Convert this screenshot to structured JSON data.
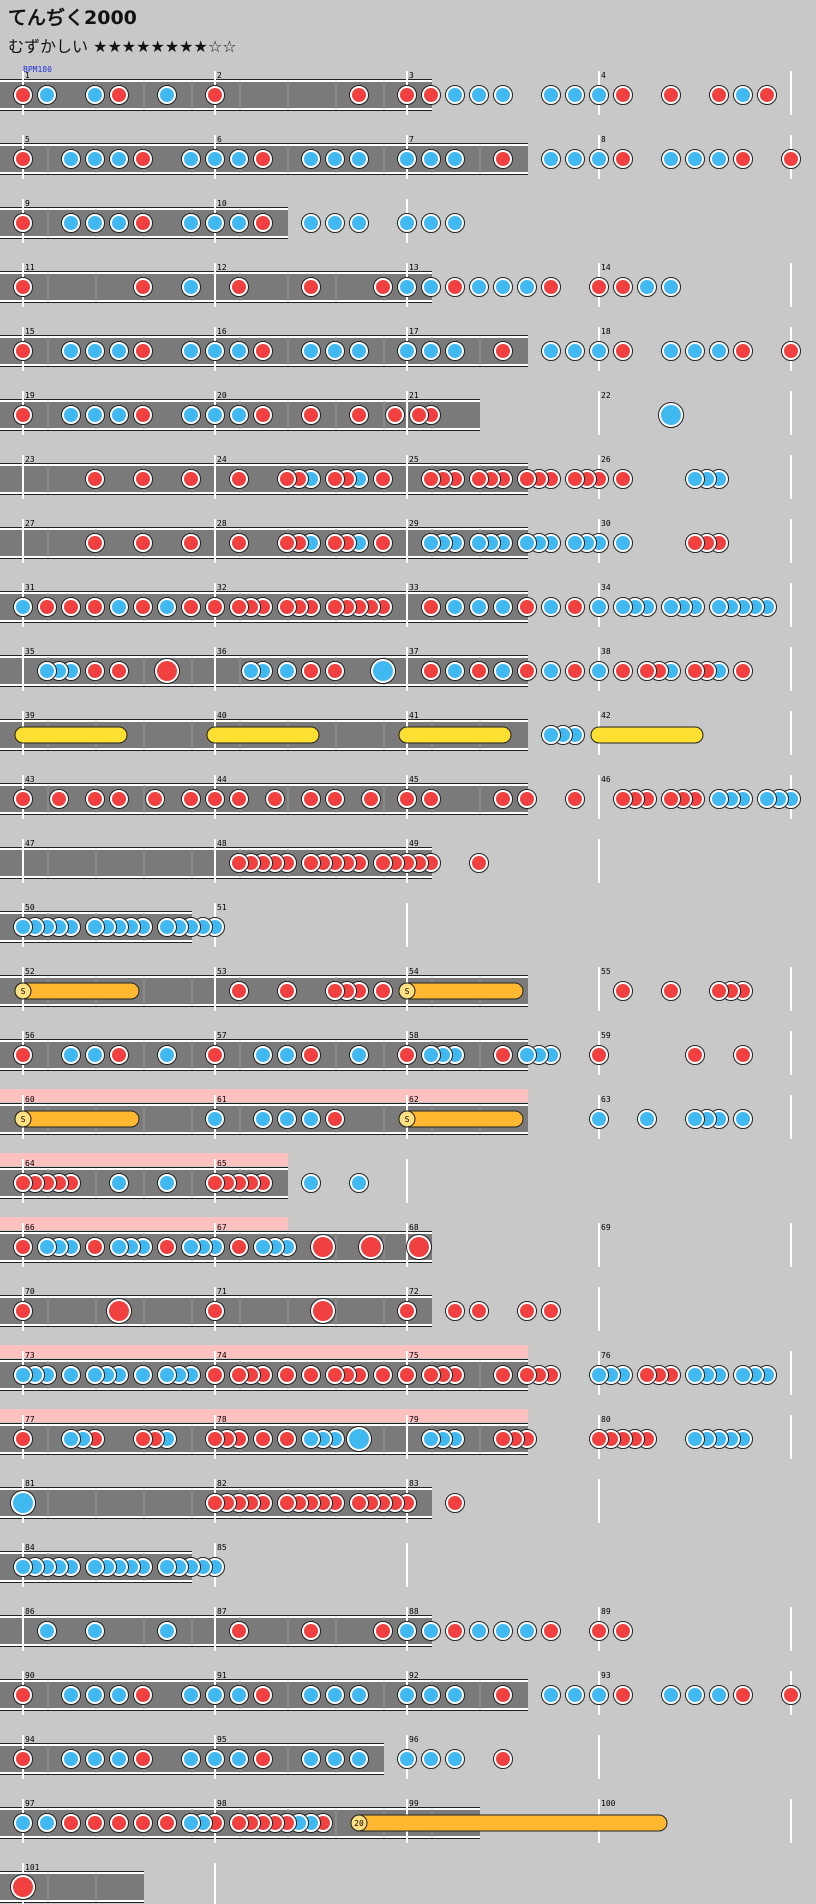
{
  "header": {
    "title": "てんぢく2000",
    "difficulty_label": "むずかしい",
    "stars": "★★★★★★★★☆☆"
  },
  "bpm_label": "BPM180",
  "colors": {
    "don": "#f04040",
    "ka": "#40b8f0",
    "roll": "#ffe030",
    "balloon": "#ffb830",
    "gogo": "#ffc0c0",
    "lane": "#7a7a7a",
    "background": "#c8c8c8"
  },
  "chart_data": {
    "type": "taiko-score",
    "note_legend": {
      "d": "don",
      "k": "ka",
      "D": "big don",
      "K": "big ka",
      "yellow roll": "drum roll",
      "orange roll": "balloon"
    },
    "rows": [
      {
        "cells": 9,
        "w": 16,
        "bars": [
          1,
          2,
          3,
          4
        ],
        "notes": "d0k1k3d4k6d8d14d16d17k18k19k20k22k23k24d25d27d29k30d31"
      },
      {
        "cells": 11,
        "w": 16,
        "bars": [
          5,
          6,
          7,
          8
        ],
        "notes": "d0k2k3k4d5k7k8k9d10k12k13k14k16k17k18d20k22k23k24d25k27k28k29d30d32k35k36k37k39k40k41"
      },
      {
        "cells": 6,
        "w": 16,
        "bars": [
          9,
          10
        ],
        "notes": "d0k2k3k4d5k7k8k9d10k12k13k14k16k17k18"
      },
      {
        "cells": 9,
        "w": 16,
        "bars": [
          11,
          12,
          13,
          14
        ],
        "notes": "d0d5k7d9d12d15k16k17d18k19k20k21d22d24d25k26k27"
      },
      {
        "cells": 11,
        "w": 16,
        "bars": [
          15,
          16,
          17,
          18
        ],
        "notes": "d0k2k3k4d5k7k8k9d10k12k13k14k16k17k18d20k22k23k24d25k27k28k29d30d32k35k36k37k39k40k41"
      },
      {
        "cells": 10,
        "w": 16,
        "bars": [
          19,
          20,
          21,
          22
        ],
        "notes": "d0k2k3k4d5k7k8k9d10d12d14d15.5d16.5d17K27"
      },
      {
        "cells": 11,
        "w": 16,
        "bars": [
          23,
          24,
          25,
          26
        ],
        "notes": "d3d5d7d9d11d11.5k12d13d13.5k14d15d17d17.5d18d19d19.5d20d21d21.5d22d23d23.5d24d25k28k28.5k29"
      },
      {
        "cells": 11,
        "w": 16,
        "bars": [
          27,
          28,
          29,
          30
        ],
        "notes": "d3d5d7d9d11d11.5k12d13d13.5k14d15k17k17.5k18k19k19.5k20k21k21.5k22k23k23.5k24k25d28d28.5d29"
      },
      {
        "cells": 11,
        "w": 16,
        "bars": [
          31,
          32,
          33,
          34
        ],
        "notes": "k0d1d2d3k4d5k6d7d8d9d9.5d10d11d11.5d12d13d13.5d14d14.5d15d17k18k19k20d21k22d23k24k25k25.5k26k27k27.5k28k29k29.5k30k30.5k31"
      },
      {
        "cells": 11,
        "w": 16,
        "bars": [
          35,
          36,
          37,
          38
        ],
        "notes": "k1k1.5k2d3d4D6k9.5k10k11d12d13K15d17k18d19k20d21k22d23k24d25d26d26.5k27d28d28.5k29d30"
      },
      {
        "cells": 11,
        "w": 16,
        "bars": [
          39,
          40,
          41,
          42
        ],
        "notes": "k22k22.5k23",
        "rolls": [
          [
            0,
            4,
            "r"
          ],
          [
            8,
            12,
            "r"
          ],
          [
            16,
            20,
            "r"
          ],
          [
            24,
            28,
            "r"
          ]
        ]
      },
      {
        "cells": 11,
        "w": 16,
        "bars": [
          43,
          44,
          45,
          46
        ],
        "notes": "d0d1.5d3d4d5.5d7d8d9d10.5d12d13d14.5d16d17d20d21d23d25d25.5d26d27d27.5d28k29k29.5k30k31k31.5k32"
      },
      {
        "cells": 9,
        "w": 16,
        "bars": [
          47,
          48,
          49
        ],
        "notes": "d9d9.5d10d10.5d11d12d12.5d13d13.5d14d15d15.5d16d16.5d17d19"
      },
      {
        "cells": 4,
        "w": 16,
        "bars": [
          50,
          51
        ],
        "notes": "k0k0.5k1k1.5k2k3k3.5k4k4.5k5k6k6.5k7k7.5k8"
      },
      {
        "cells": 11,
        "w": 16,
        "bars": [
          52,
          53,
          54,
          55
        ],
        "notes": "d9d11d13d13.5d14d15d25d27d29d29.5d30",
        "rolls": [
          [
            0,
            4.5,
            "b"
          ],
          [
            16,
            20.5,
            "b"
          ]
        ]
      },
      {
        "cells": 11,
        "w": 16,
        "bars": [
          56,
          57,
          58,
          59
        ],
        "notes": "d0k2k3d4k6d8k10k11d12k14d16k17k17.5k18d20k21k21.5k22d24d28d30"
      },
      {
        "cells": 11,
        "w": 16,
        "bars": [
          60,
          61,
          62,
          63
        ],
        "notes": "k8k10k11k12d13k24k26k28k28.5k29k30",
        "rolls": [
          [
            0,
            4.5,
            "b"
          ],
          [
            16,
            20.5,
            "b"
          ]
        ],
        "gogo": [
          0,
          11
        ]
      },
      {
        "cells": 6,
        "w": 16,
        "bars": [
          64,
          65
        ],
        "notes": "d0d0.5d1d1.5d2k4k6d8d8.5d9d9.5d10k12k14",
        "gogo": [
          0,
          6
        ]
      },
      {
        "cells": 9,
        "w": 16,
        "bars": [
          66,
          67,
          68,
          69
        ],
        "notes": "d0k1k1.5k2d3k4k4.5k5d6k7k7.5k8d9k10k10.5k11D12.5D14.5D16.5",
        "gogo": [
          0,
          6
        ]
      },
      {
        "cells": 9,
        "w": 16,
        "bars": [
          70,
          71,
          72
        ],
        "notes": "d0D4d8D12.5d16d18d19d21d22"
      },
      {
        "cells": 11,
        "w": 16,
        "bars": [
          73,
          74,
          75,
          76
        ],
        "notes": "k0k0.5k1k2k3k3.5k4k5k6k6.5k7d8d9d9.5d10d11d12d13d13.5d14d15d16d17d17.5d18d20d21d21.5d22k24k24.5k25d26d26.5d27k28k28.5k29k30k30.5k31",
        "gogo": [
          0,
          11
        ]
      },
      {
        "cells": 11,
        "w": 16,
        "bars": [
          77,
          78,
          79,
          80
        ],
        "notes": "d0k2k2.5d3d5d5.5k6d8d8.5d9d10d11k12k12.5k13K14k17k17.5k18d20d20.5d21d24d24.5d25d25.5d26k28k28.5k29k29.5k30",
        "gogo": [
          0,
          11
        ]
      },
      {
        "cells": 9,
        "w": 16,
        "bars": [
          81,
          82,
          83
        ],
        "notes": "K0d8d8.5d9d9.5d10d11d11.5d12d12.5d13d14d14.5d15d15.5d16d18"
      },
      {
        "cells": 4,
        "w": 16,
        "bars": [
          84,
          85
        ],
        "notes": "k0k0.5k1k1.5k2k3k3.5k4k4.5k5k6k6.5k7k7.5k8"
      },
      {
        "cells": 9,
        "w": 16,
        "bars": [
          86,
          87,
          88,
          89
        ],
        "notes": "k1k3k6d9d12d15k16k17d18k19k20k21d22d24d25"
      },
      {
        "cells": 11,
        "w": 16,
        "bars": [
          90,
          91,
          92,
          93
        ],
        "notes": "d0k2k3k4d5k7k8k9d10k12k13k14k16k17k18d20k22k23k24d25k27k28k29d30d32k35k36k37k39k40k41"
      },
      {
        "cells": 8,
        "w": 16,
        "bars": [
          94,
          95,
          96
        ],
        "notes": "d0k2k3k4d5k7k8k9d10k12k13k14k16k17k18d20"
      },
      {
        "cells": 10,
        "w": 16,
        "bars": [
          97,
          98,
          99,
          100
        ],
        "notes": "k0k1d2d3d4d5d6k7k7.5d8d9d9.5d10d10.5d11k11.5k12d12.5",
        "rolls": [
          [
            14,
            26.5,
            "b"
          ]
        ],
        "balloon_count": "20"
      },
      {
        "cells": 3,
        "w": 16,
        "bars": [
          101
        ],
        "notes": "D0"
      }
    ]
  }
}
